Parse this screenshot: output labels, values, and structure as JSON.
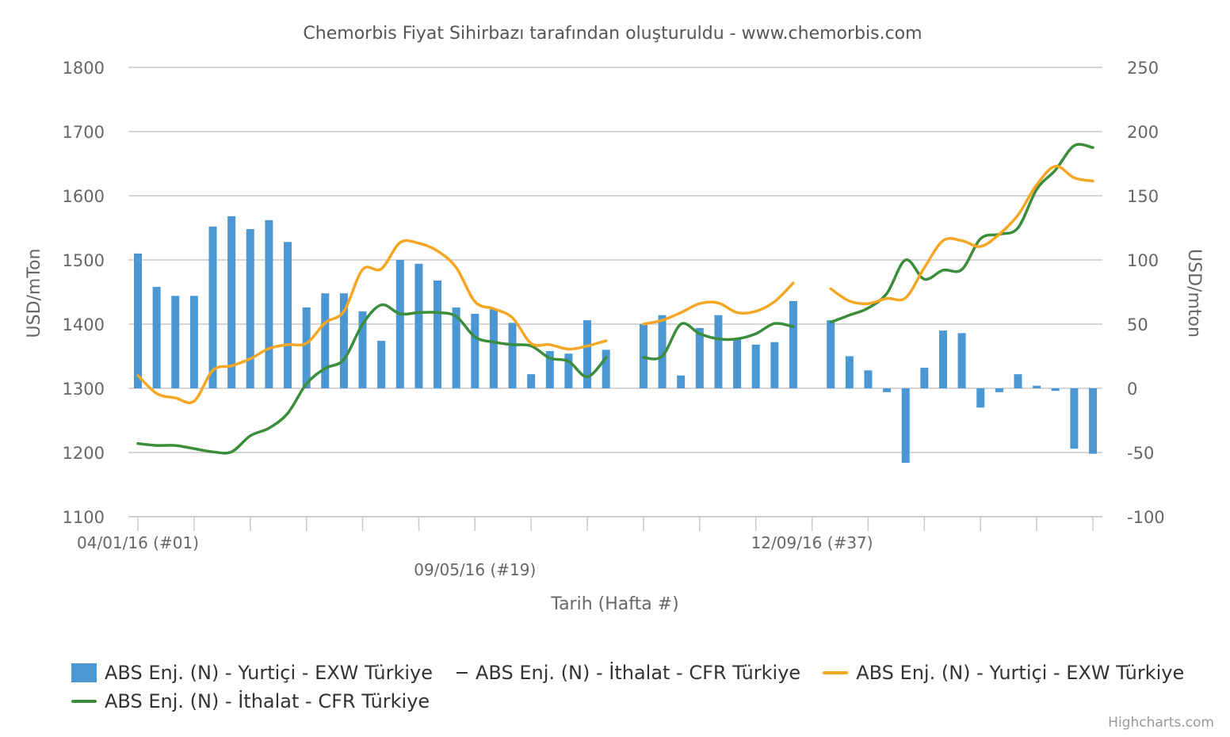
{
  "chart_data": {
    "type": "bar+line",
    "title": "Chemorbis Fiyat Sihirbazı tarafından oluşturuldu - www.chemorbis.com",
    "xlabel": "Tarih (Hafta #)",
    "ylabel_left": "USD/mTon",
    "ylabel_right": "USD/mton",
    "y_left": {
      "min": 1100,
      "max": 1800,
      "ticks": [
        "1800",
        "1700",
        "1600",
        "1500",
        "1400",
        "1300",
        "1200",
        "1100"
      ]
    },
    "y_right": {
      "min": -100,
      "max": 250,
      "ticks": [
        "250",
        "200",
        "150",
        "100",
        "50",
        "0",
        "-50",
        "-100"
      ]
    },
    "x_week_range": [
      1,
      52
    ],
    "x_tick_weeks": [
      1,
      4,
      7,
      10,
      13,
      16,
      19,
      22,
      25,
      28,
      31,
      34,
      37,
      40,
      43,
      46,
      49,
      52
    ],
    "x_labels": [
      {
        "week": 1,
        "text": "04/01/16 (#01)",
        "row": 1
      },
      {
        "week": 19,
        "text": "09/05/16 (#19)",
        "row": 2
      },
      {
        "week": 37,
        "text": "12/09/16 (#37)",
        "row": 1
      }
    ],
    "grid": true,
    "legend_position": "bottom",
    "credits": "Highcharts.com",
    "series": [
      {
        "name": "ABS Enj. (N) - Yurtiçi - EXW Türkiye",
        "type": "bar",
        "axis": "right",
        "color": "#4a97d4",
        "values": [
          105,
          79,
          72,
          72,
          126,
          134,
          124,
          131,
          114,
          63,
          74,
          74,
          60,
          37,
          100,
          97,
          84,
          63,
          58,
          62,
          51,
          11,
          29,
          27,
          53,
          30,
          null,
          50,
          57,
          10,
          47,
          57,
          39,
          34,
          36,
          68,
          null,
          53,
          25,
          14,
          -3,
          -58,
          16,
          45,
          43,
          -15,
          -3,
          11,
          2,
          -2,
          -47,
          -51
        ]
      },
      {
        "name": "ABS Enj. (N) - İthalat - CFR Türkiye",
        "type": "line",
        "axis": "left",
        "color": "#3b8c3b",
        "values": [
          1214,
          1211,
          1211,
          1206,
          1201,
          1201,
          1226,
          1238,
          1261,
          1307,
          1331,
          1345,
          1400,
          1430,
          1416,
          1418,
          1418,
          1412,
          1380,
          1372,
          1368,
          1366,
          1347,
          1342,
          1318,
          1348,
          null,
          1348,
          1350,
          1400,
          1385,
          1377,
          1377,
          1385,
          1401,
          1396,
          null,
          1403,
          1414,
          1425,
          1448,
          1500,
          1470,
          1484,
          1485,
          1533,
          1540,
          1550,
          1610,
          1640,
          1678,
          1675
        ]
      },
      {
        "name": "ABS Enj. (N) - Yurtiçi - EXW Türkiye",
        "type": "line",
        "axis": "left",
        "color": "#f5a623",
        "values": [
          1320,
          1292,
          1285,
          1280,
          1328,
          1335,
          1346,
          1362,
          1368,
          1370,
          1402,
          1420,
          1485,
          1486,
          1527,
          1526,
          1514,
          1488,
          1435,
          1424,
          1410,
          1370,
          1368,
          1361,
          1366,
          1374,
          null,
          1400,
          1406,
          1418,
          1432,
          1433,
          1418,
          1420,
          1435,
          1464,
          null,
          1455,
          1436,
          1432,
          1440,
          1441,
          1488,
          1530,
          1530,
          1521,
          1540,
          1570,
          1617,
          1646,
          1628,
          1623
        ]
      }
    ]
  },
  "legend": {
    "items": [
      {
        "label": "ABS Enj. (N) - Yurtiçi - EXW Türkiye",
        "symbol": "bar",
        "color": "#4a97d4"
      },
      {
        "label": "ABS Enj. (N) - İthalat - CFR Türkiye",
        "symbol": "dash",
        "color": "#333333"
      },
      {
        "label": "ABS Enj. (N) - Yurtiçi - EXW Türkiye",
        "symbol": "line",
        "color": "#f5a623"
      },
      {
        "label": "ABS Enj. (N) - İthalat - CFR Türkiye",
        "symbol": "line",
        "color": "#3b8c3b"
      }
    ]
  }
}
